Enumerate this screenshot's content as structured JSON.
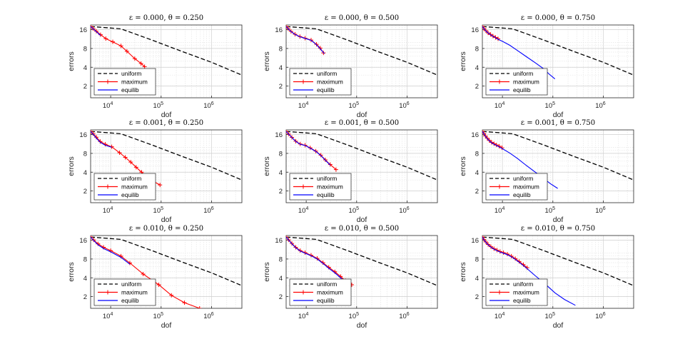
{
  "figure": {
    "xlabel": "dof",
    "ylabel": "errors",
    "legend": [
      "uniform",
      "maximum",
      "equilib"
    ],
    "legend_placement": "bottom-left",
    "colors": {
      "uniform": "#000000",
      "maximum": "#ff0000",
      "equilib": "#0000ff"
    }
  },
  "chart_data": [
    {
      "type": "line",
      "title": "ε = 0.000, θ = 0.250",
      "xlabel": "dof",
      "ylabel": "errors",
      "xscale": "log",
      "yscale": "log",
      "xlim": [
        4000,
        4000000
      ],
      "ylim": [
        1.3,
        19
      ],
      "grid": true,
      "legend_placement": "bottom-left",
      "xticks": [
        "10^4",
        "10^5",
        "10^6"
      ],
      "yticks": [
        "2",
        "4",
        "8",
        "16"
      ],
      "series": [
        {
          "name": "uniform",
          "style": "dashed",
          "x": [
            4000,
            16000,
            64000,
            256000,
            1000000,
            4000000
          ],
          "y": [
            18,
            16.5,
            11,
            7.2,
            4.8,
            3.0
          ]
        },
        {
          "name": "maximum",
          "style": "plus-markers",
          "x": [
            4000,
            4500,
            5200,
            6300,
            8000,
            11000,
            16000,
            21000,
            30000,
            40000,
            47000
          ],
          "y": [
            18,
            16.6,
            15.1,
            13.3,
            11.5,
            10.2,
            8.8,
            7.2,
            5.5,
            4.6,
            4.1
          ]
        },
        {
          "name": "equilib",
          "style": "solid",
          "x": [
            4000,
            4500,
            5200,
            6300
          ],
          "y": [
            18,
            16.5,
            14.8,
            12.9
          ]
        }
      ]
    },
    {
      "type": "line",
      "title": "ε = 0.000, θ = 0.500",
      "xlabel": "dof",
      "ylabel": "errors",
      "xscale": "log",
      "yscale": "log",
      "xlim": [
        4000,
        4000000
      ],
      "ylim": [
        1.3,
        19
      ],
      "grid": true,
      "legend_placement": "bottom-left",
      "xticks": [
        "10^4",
        "10^5",
        "10^6"
      ],
      "yticks": [
        "2",
        "4",
        "8",
        "16"
      ],
      "series": [
        {
          "name": "uniform",
          "style": "dashed",
          "x": [
            4000,
            16000,
            64000,
            256000,
            1000000,
            4000000
          ],
          "y": [
            18,
            16.5,
            11,
            7.2,
            4.8,
            3.0
          ]
        },
        {
          "name": "maximum",
          "style": "plus-markers",
          "x": [
            4000,
            4400,
            5000,
            6000,
            7500,
            9500,
            12500,
            16000,
            19000,
            22000
          ],
          "y": [
            18,
            16.6,
            15,
            13.5,
            12.4,
            11.7,
            10.9,
            9.3,
            8.1,
            6.8
          ]
        },
        {
          "name": "equilib",
          "style": "solid",
          "x": [
            4000,
            4400,
            5000,
            6000,
            7500,
            9500,
            12500,
            16000,
            19000,
            23000
          ],
          "y": [
            18,
            16.5,
            14.9,
            13.4,
            12.3,
            11.6,
            10.8,
            9.2,
            7.9,
            6.6
          ]
        }
      ]
    },
    {
      "type": "line",
      "title": "ε = 0.000, θ = 0.750",
      "xlabel": "dof",
      "ylabel": "errors",
      "xscale": "log",
      "yscale": "log",
      "xlim": [
        4000,
        4000000
      ],
      "ylim": [
        1.3,
        19
      ],
      "grid": true,
      "legend_placement": "bottom-left",
      "xticks": [
        "10^4",
        "10^5",
        "10^6"
      ],
      "yticks": [
        "2",
        "4",
        "8",
        "16"
      ],
      "series": [
        {
          "name": "uniform",
          "style": "dashed",
          "x": [
            4000,
            16000,
            64000,
            256000,
            1000000,
            4000000
          ],
          "y": [
            18,
            16.5,
            11,
            7.2,
            4.8,
            3.0
          ]
        },
        {
          "name": "maximum",
          "style": "plus-markers",
          "x": [
            4000,
            4300,
            4700,
            5200,
            5800,
            6500,
            7300,
            8200
          ],
          "y": [
            18,
            16.7,
            15.4,
            14.2,
            13.4,
            12.6,
            12.0,
            11.4
          ]
        },
        {
          "name": "equilib",
          "style": "solid",
          "x": [
            4000,
            4300,
            4700,
            5200,
            5800,
            6500,
            7300,
            8200,
            10000,
            14000,
            20000,
            30000,
            45000,
            65000,
            85000,
            110000
          ],
          "y": [
            18,
            16.6,
            15.3,
            14.1,
            13.3,
            12.5,
            11.9,
            11.2,
            10.4,
            9.0,
            7.4,
            5.9,
            4.7,
            3.8,
            3.1,
            2.6
          ]
        }
      ]
    },
    {
      "type": "line",
      "title": "ε = 0.001, θ = 0.250",
      "xlabel": "dof",
      "ylabel": "errors",
      "xscale": "log",
      "yscale": "log",
      "xlim": [
        4000,
        4000000
      ],
      "ylim": [
        1.3,
        19
      ],
      "grid": true,
      "legend_placement": "bottom-left",
      "xticks": [
        "10^4",
        "10^5",
        "10^6"
      ],
      "yticks": [
        "2",
        "4",
        "8",
        "16"
      ],
      "series": [
        {
          "name": "uniform",
          "style": "dashed",
          "x": [
            4000,
            16000,
            64000,
            256000,
            1000000,
            4000000
          ],
          "y": [
            18,
            16.5,
            11,
            7.2,
            4.8,
            3.0
          ]
        },
        {
          "name": "maximum",
          "style": "plus-markers",
          "x": [
            4000,
            4500,
            5200,
            6200,
            7800,
            10500,
            15000,
            19500,
            25000,
            32000,
            41000,
            52000,
            68000,
            95000
          ],
          "y": [
            18,
            16.5,
            14.5,
            12.4,
            11.2,
            10.2,
            8.2,
            6.9,
            5.8,
            4.8,
            4.0,
            3.4,
            2.9,
            2.5
          ]
        },
        {
          "name": "equilib",
          "style": "solid",
          "x": [
            4000,
            4500,
            5200,
            6200,
            7800,
            10500
          ],
          "y": [
            18,
            16.2,
            14.0,
            12.0,
            10.8,
            10.0
          ]
        }
      ]
    },
    {
      "type": "line",
      "title": "ε = 0.001, θ = 0.500",
      "xlabel": "dof",
      "ylabel": "errors",
      "xscale": "log",
      "yscale": "log",
      "xlim": [
        4000,
        4000000
      ],
      "ylim": [
        1.3,
        19
      ],
      "grid": true,
      "legend_placement": "bottom-left",
      "xticks": [
        "10^4",
        "10^5",
        "10^6"
      ],
      "yticks": [
        "2",
        "4",
        "8",
        "16"
      ],
      "series": [
        {
          "name": "uniform",
          "style": "dashed",
          "x": [
            4000,
            16000,
            64000,
            256000,
            1000000,
            4000000
          ],
          "y": [
            18,
            16.5,
            11,
            7.2,
            4.8,
            3.0
          ]
        },
        {
          "name": "maximum",
          "style": "plus-markers",
          "x": [
            4000,
            4500,
            5200,
            6200,
            7600,
            9500,
            12000,
            15500,
            19500,
            24000,
            30000,
            39000
          ],
          "y": [
            18,
            16.3,
            14.4,
            12.5,
            11.3,
            10.8,
            9.8,
            8.7,
            7.5,
            6.3,
            5.3,
            4.4
          ]
        },
        {
          "name": "equilib",
          "style": "solid",
          "x": [
            4000,
            4500,
            5200,
            6200,
            7600,
            9500,
            12000,
            15500,
            19500,
            24000,
            30000
          ],
          "y": [
            18,
            16.2,
            14.3,
            12.4,
            11.2,
            10.7,
            9.7,
            8.6,
            7.4,
            6.2,
            5.2
          ]
        }
      ]
    },
    {
      "type": "line",
      "title": "ε = 0.001, θ = 0.750",
      "xlabel": "dof",
      "ylabel": "errors",
      "xscale": "log",
      "yscale": "log",
      "xlim": [
        4000,
        4000000
      ],
      "ylim": [
        1.3,
        19
      ],
      "grid": true,
      "legend_placement": "bottom-left",
      "xticks": [
        "10^4",
        "10^5",
        "10^6"
      ],
      "yticks": [
        "2",
        "4",
        "8",
        "16"
      ],
      "series": [
        {
          "name": "uniform",
          "style": "dashed",
          "x": [
            4000,
            16000,
            64000,
            256000,
            1000000,
            4000000
          ],
          "y": [
            18,
            16.5,
            11,
            7.2,
            4.8,
            3.0
          ]
        },
        {
          "name": "maximum",
          "style": "plus-markers",
          "x": [
            4000,
            4300,
            4600,
            5000,
            5500,
            6100,
            6800,
            7600,
            8600,
            9800
          ],
          "y": [
            18,
            16.6,
            15.2,
            14.0,
            12.9,
            12.0,
            11.4,
            10.9,
            10.4,
            9.8
          ]
        },
        {
          "name": "equilib",
          "style": "solid",
          "x": [
            4000,
            4300,
            4600,
            5000,
            5500,
            6100,
            6800,
            7600,
            8600,
            9800,
            14000,
            20000,
            30000,
            45000,
            65000,
            90000,
            125000
          ],
          "y": [
            18,
            16.5,
            15.0,
            13.8,
            12.7,
            11.8,
            11.2,
            10.7,
            10.2,
            9.6,
            8.1,
            6.6,
            5.1,
            4.0,
            3.2,
            2.6,
            2.2
          ]
        }
      ]
    },
    {
      "type": "line",
      "title": "ε = 0.010, θ = 0.250",
      "xlabel": "dof",
      "ylabel": "errors",
      "xscale": "log",
      "yscale": "log",
      "xlim": [
        4000,
        4000000
      ],
      "ylim": [
        1.3,
        19
      ],
      "grid": true,
      "legend_placement": "bottom-left",
      "xticks": [
        "10^4",
        "10^5",
        "10^6"
      ],
      "yticks": [
        "2",
        "4",
        "8",
        "16"
      ],
      "series": [
        {
          "name": "uniform",
          "style": "dashed",
          "x": [
            4000,
            16000,
            64000,
            256000,
            1000000,
            4000000
          ],
          "y": [
            18,
            16.5,
            11,
            7.2,
            4.8,
            3.0
          ]
        },
        {
          "name": "maximum",
          "style": "plus-markers",
          "x": [
            4000,
            4600,
            5600,
            7200,
            10000,
            16000,
            24000,
            44000,
            90000,
            160000,
            290000,
            580000
          ],
          "y": [
            18,
            16.2,
            14.0,
            12.3,
            10.9,
            8.9,
            6.9,
            4.6,
            3.1,
            2.1,
            1.6,
            1.3
          ]
        },
        {
          "name": "equilib",
          "style": "solid",
          "x": [
            4000,
            4600,
            5600,
            7200,
            10000,
            16000,
            24000
          ],
          "y": [
            18,
            15.8,
            13.5,
            11.8,
            10.4,
            8.5,
            6.6
          ]
        }
      ]
    },
    {
      "type": "line",
      "title": "ε = 0.010, θ = 0.500",
      "xlabel": "dof",
      "ylabel": "errors",
      "xscale": "log",
      "yscale": "log",
      "xlim": [
        4000,
        4000000
      ],
      "ylim": [
        1.3,
        19
      ],
      "grid": true,
      "legend_placement": "bottom-left",
      "xticks": [
        "10^4",
        "10^5",
        "10^6"
      ],
      "yticks": [
        "2",
        "4",
        "8",
        "16"
      ],
      "series": [
        {
          "name": "uniform",
          "style": "dashed",
          "x": [
            4000,
            16000,
            64000,
            256000,
            1000000,
            4000000
          ],
          "y": [
            18,
            16.5,
            11,
            7.2,
            4.8,
            3.0
          ]
        },
        {
          "name": "maximum",
          "style": "plus-markers",
          "x": [
            4000,
            4500,
            5200,
            6200,
            7600,
            9500,
            12500,
            16500,
            21500,
            28000,
            37000,
            48000,
            60000,
            80000
          ],
          "y": [
            18,
            16.2,
            14.2,
            12.3,
            10.9,
            10.1,
            9.2,
            8.2,
            7.0,
            5.9,
            5.0,
            4.2,
            3.6,
            3.1
          ]
        },
        {
          "name": "equilib",
          "style": "solid",
          "x": [
            4000,
            4500,
            5200,
            6200,
            7600,
            9500,
            12500,
            16500,
            21500,
            28000,
            37000,
            48000,
            60000
          ],
          "y": [
            18,
            16.0,
            14.0,
            12.1,
            10.7,
            9.9,
            9.0,
            8.0,
            6.8,
            5.7,
            4.8,
            4.0,
            3.5
          ]
        }
      ]
    },
    {
      "type": "line",
      "title": "ε = 0.010, θ = 0.750",
      "xlabel": "dof",
      "ylabel": "errors",
      "xscale": "log",
      "yscale": "log",
      "xlim": [
        4000,
        4000000
      ],
      "ylim": [
        1.3,
        19
      ],
      "grid": true,
      "legend_placement": "bottom-left",
      "xticks": [
        "10^4",
        "10^5",
        "10^6"
      ],
      "yticks": [
        "2",
        "4",
        "8",
        "16"
      ],
      "series": [
        {
          "name": "uniform",
          "style": "dashed",
          "x": [
            4000,
            16000,
            64000,
            256000,
            1000000,
            4000000
          ],
          "y": [
            18,
            16.5,
            11,
            7.2,
            4.8,
            3.0
          ]
        },
        {
          "name": "maximum",
          "style": "plus-markers",
          "x": [
            4000,
            4300,
            4700,
            5200,
            5900,
            6800,
            7800,
            9000,
            10500,
            12500,
            15000,
            18000,
            21500,
            26000,
            31000
          ],
          "y": [
            18,
            16.5,
            15.0,
            13.7,
            12.6,
            11.7,
            11.1,
            10.5,
            10.1,
            9.6,
            8.9,
            8.1,
            7.3,
            6.5,
            5.8
          ]
        },
        {
          "name": "equilib",
          "style": "solid",
          "x": [
            4000,
            4300,
            4700,
            5200,
            5900,
            6800,
            7800,
            9000,
            10500,
            12500,
            15000,
            18000,
            21500,
            26000,
            31000,
            45000,
            70000,
            110000,
            170000,
            280000
          ],
          "y": [
            18,
            16.3,
            14.8,
            13.5,
            12.4,
            11.5,
            10.9,
            10.3,
            9.9,
            9.4,
            8.7,
            7.9,
            7.1,
            6.3,
            5.6,
            4.3,
            3.2,
            2.3,
            1.8,
            1.45
          ]
        }
      ]
    }
  ]
}
